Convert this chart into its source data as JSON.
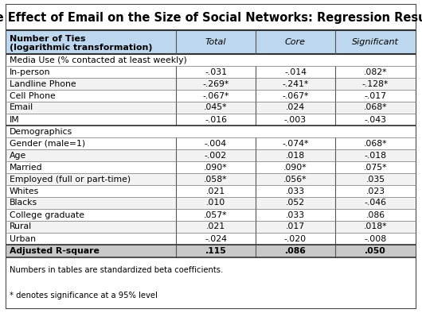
{
  "title": "The Effect of Email on the Size of Social Networks: Regression Results",
  "header_col0_line1": "Number of Ties",
  "header_col0_line2": "(logarithmic transformation)",
  "col_headers": [
    "Total",
    "Core",
    "Significant"
  ],
  "section_media": "Media Use (% contacted at least weekly)",
  "section_demo": "Demographics",
  "rows": [
    [
      "In-person",
      "-.031",
      "-.014",
      ".082*"
    ],
    [
      "Landline Phone",
      "-.269*",
      "-.241*",
      "-.128*"
    ],
    [
      "Cell Phone",
      "-.067*",
      "-.067*",
      "-.017"
    ],
    [
      "Email",
      ".045*",
      ".024",
      ".068*"
    ],
    [
      "IM",
      "-.016",
      "-.003",
      "-.043"
    ],
    [
      "Gender (male=1)",
      "-.004",
      "-.074*",
      ".068*"
    ],
    [
      "Age",
      "-.002",
      ".018",
      "-.018"
    ],
    [
      "Married",
      ".090*",
      ".090*",
      ".075*"
    ],
    [
      "Employed (full or part-time)",
      ".058*",
      ".056*",
      ".035"
    ],
    [
      "Whites",
      ".021",
      ".033",
      ".023"
    ],
    [
      "Blacks",
      ".010",
      ".052",
      "-.046"
    ],
    [
      "College graduate",
      ".057*",
      ".033",
      ".086"
    ],
    [
      "Rural",
      ".021",
      ".017",
      ".018*"
    ],
    [
      "Urban",
      "-.024",
      "-.020",
      "-.008"
    ]
  ],
  "adj_r_row": [
    "Adjusted R-square",
    ".115",
    ".086",
    ".050"
  ],
  "footnotes": [
    "Numbers in tables are standardized beta coefficients.",
    "* denotes significance at a 95% level"
  ],
  "header_bg": "#BDD7EE",
  "adj_r_bg": "#C8C8C8",
  "outer_border_color": "#444444",
  "inner_border_color": "#888888",
  "section_border_color": "#555555",
  "title_fontsize": 10.5,
  "header_fontsize": 8.0,
  "cell_fontsize": 7.8,
  "section_fontsize": 7.8,
  "footnote_fontsize": 7.2,
  "fig_width": 5.3,
  "fig_height": 3.94,
  "dpi": 100
}
